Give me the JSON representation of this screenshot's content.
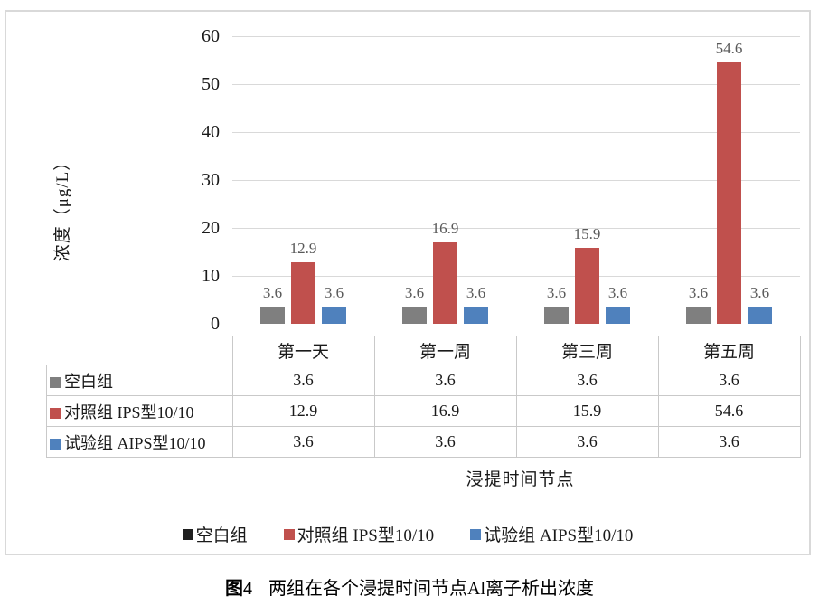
{
  "figure": {
    "y_axis_title": "浓度（μg/L）",
    "x_axis_title": "浸提时间节点",
    "caption_prefix": "图4",
    "caption_text": "两组在各个浸提时间节点Al离子析出浓度"
  },
  "chart_data": {
    "type": "bar",
    "categories": [
      "第一天",
      "第一周",
      "第三周",
      "第五周"
    ],
    "series": [
      {
        "name": "空白组",
        "color": "#7f7f7f",
        "legend_color": "#1f1f1f",
        "values": [
          3.6,
          3.6,
          3.6,
          3.6
        ]
      },
      {
        "name": "对照组 IPS型10/10",
        "color": "#c0504d",
        "values": [
          12.9,
          16.9,
          15.9,
          54.6
        ]
      },
      {
        "name": "试验组 AIPS型10/10",
        "color": "#4f81bd",
        "values": [
          3.6,
          3.6,
          3.6,
          3.6
        ]
      }
    ],
    "ylabel": "浓度（μg/L）",
    "xlabel": "浸提时间节点",
    "ylim": [
      0,
      60
    ],
    "ytick_step": 10,
    "yticks": [
      0,
      10,
      20,
      30,
      40,
      50,
      60
    ],
    "grid": true,
    "data_labels": true,
    "legend_position": "bottom",
    "show_data_table": true
  },
  "colors": {
    "gridline": "#d9d9d9",
    "table_border": "#c9c9c9",
    "frame_border": "#d9d9d9",
    "data_label_text": "#595959"
  }
}
